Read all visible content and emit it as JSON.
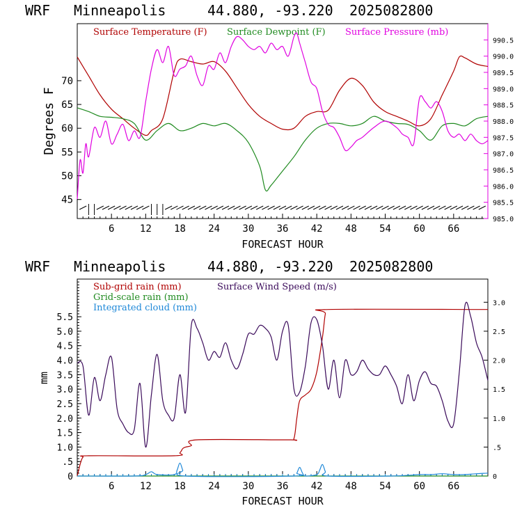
{
  "colors": {
    "temperature": "#b00000",
    "dewpoint": "#1f8a1f",
    "pressure": "#e000e0",
    "subgrid_rain": "#b00000",
    "gridscale_rain": "#1f8a1f",
    "cloud": "#1e88d8",
    "wind_speed": "#3a0a5a",
    "axis": "#000000"
  },
  "chart_data": [
    {
      "type": "line",
      "header": {
        "model": "WRF",
        "location": "Minneapolis",
        "coords": "44.880, -93.220",
        "run": "2025082800"
      },
      "xlabel": "FORECAST HOUR",
      "ylabel": "Degrees F",
      "xlim": [
        0,
        72
      ],
      "ylim": [
        41,
        82
      ],
      "y2lim": [
        985.0,
        991.0
      ],
      "x_ticks": [
        "6",
        "12",
        "18",
        "24",
        "30",
        "36",
        "42",
        "48",
        "54",
        "60",
        "66"
      ],
      "y_ticks": [
        "45",
        "50",
        "55",
        "60",
        "65",
        "70"
      ],
      "y2_ticks": [
        "985.0",
        "985.5",
        "986.0",
        "986.5",
        "987.0",
        "987.5",
        "988.0",
        "988.5",
        "989.0",
        "989.5",
        "990.0",
        "990.5"
      ],
      "legend": {
        "temperature": "Surface Temperature (F)",
        "dewpoint": "Surface Dewpoint (F)",
        "pressure": "Surface Pressure (mb)"
      },
      "series": [
        {
          "key": "temperature",
          "axis": "left",
          "x": [
            0,
            2,
            4,
            6,
            8,
            10,
            12,
            13,
            15,
            17,
            18,
            20,
            22,
            24,
            26,
            28,
            30,
            32,
            34,
            36,
            38,
            40,
            42,
            44,
            46,
            48,
            50,
            52,
            54,
            56,
            58,
            60,
            62,
            64,
            66,
            67,
            68,
            70,
            72
          ],
          "y": [
            75,
            71,
            67,
            64,
            62,
            60,
            58.5,
            59.5,
            62,
            72,
            74.5,
            74,
            73.5,
            74,
            72,
            68.5,
            65,
            62.5,
            61,
            59.8,
            60,
            62.5,
            63.5,
            63.8,
            68,
            70.5,
            69,
            65.5,
            63.5,
            62.5,
            61.5,
            60.5,
            62,
            67,
            72,
            75,
            74.8,
            73.5,
            73
          ]
        },
        {
          "key": "dewpoint",
          "axis": "left",
          "x": [
            0,
            2,
            4,
            6,
            8,
            10,
            12,
            14,
            16,
            18,
            20,
            22,
            24,
            26,
            28,
            30,
            32,
            33,
            34,
            36,
            38,
            40,
            42,
            44,
            46,
            48,
            50,
            52,
            54,
            56,
            58,
            60,
            62,
            64,
            66,
            68,
            70,
            72
          ],
          "y": [
            64.3,
            63.5,
            62.5,
            62.3,
            62,
            61,
            57.5,
            59.5,
            61,
            59.5,
            60,
            61,
            60.5,
            61,
            59.5,
            57,
            52,
            47,
            48,
            51,
            54,
            57.5,
            60,
            61,
            61,
            60.5,
            61,
            62.5,
            61.5,
            61,
            60.8,
            59.5,
            57.5,
            60.5,
            61,
            60.5,
            62,
            62.5
          ]
        },
        {
          "key": "pressure",
          "axis": "right",
          "x": [
            0,
            0.5,
            1,
            1.5,
            2,
            3,
            4,
            5,
            6,
            7,
            8,
            9,
            10,
            11,
            12,
            13,
            14,
            15,
            16,
            17,
            18,
            19,
            20,
            21,
            22,
            23,
            24,
            25,
            26,
            27,
            28,
            29,
            30,
            31,
            32,
            33,
            34,
            35,
            36,
            37,
            38,
            38.5,
            39,
            40,
            41,
            42,
            43,
            44,
            45,
            46,
            47,
            48,
            49,
            50,
            52,
            54,
            56,
            57,
            58,
            59,
            60,
            61,
            62,
            63,
            64,
            65,
            66,
            67,
            68,
            69,
            70,
            71,
            72
          ],
          "y": [
            985.6,
            986.8,
            986.4,
            987.3,
            986.9,
            987.8,
            987.5,
            988.0,
            987.3,
            987.6,
            987.9,
            987.4,
            987.7,
            987.5,
            988.6,
            989.6,
            990.2,
            989.8,
            990.3,
            989.4,
            989.6,
            989.7,
            990.0,
            989.4,
            989.1,
            989.7,
            989.6,
            990.1,
            989.8,
            990.3,
            990.6,
            990.5,
            990.3,
            990.2,
            990.3,
            990.1,
            990.4,
            990.2,
            990.3,
            990.0,
            990.6,
            990.7,
            990.4,
            989.8,
            989.2,
            989.0,
            988.3,
            987.9,
            987.8,
            987.5,
            987.1,
            987.2,
            987.4,
            987.5,
            987.8,
            988.0,
            987.8,
            987.6,
            987.5,
            987.3,
            988.7,
            988.6,
            988.4,
            988.6,
            988.3,
            987.7,
            987.5,
            987.6,
            987.4,
            987.6,
            987.4,
            987.3,
            987.4
          ]
        }
      ],
      "wind_barbs": "surface wind barbs along the bottom of the panel, hourly"
    },
    {
      "type": "line",
      "header": {
        "model": "WRF",
        "location": "Minneapolis",
        "coords": "44.880, -93.220",
        "run": "2025082800"
      },
      "xlabel": "FORECAST HOUR",
      "ylabel": "mm",
      "xlim": [
        0,
        72
      ],
      "ylim": [
        0,
        6.8
      ],
      "y2lim": [
        0,
        3.4
      ],
      "x_ticks": [
        "6",
        "12",
        "18",
        "24",
        "30",
        "36",
        "42",
        "48",
        "54",
        "60",
        "66"
      ],
      "y_ticks": [
        "0",
        ".5",
        "1.0",
        "1.5",
        "2.0",
        "2.5",
        "3.0",
        "3.5",
        "4.0",
        "4.5",
        "5.0",
        "5.5"
      ],
      "y2_ticks": [
        "0",
        ".5",
        "1.0",
        "1.5",
        "2.0",
        "2.5",
        "3.0"
      ],
      "legend": {
        "subgrid_rain": "Sub-grid rain (mm)",
        "wind_speed": "Surface Wind Speed (m/s)",
        "gridscale_rain": "Grid-scale rain (mm)",
        "cloud": "Integrated cloud (mm)"
      },
      "series": [
        {
          "key": "subgrid_rain",
          "axis": "left",
          "x": [
            0,
            0.5,
            1,
            2,
            17,
            18,
            18.5,
            19,
            20,
            21,
            37,
            38,
            38.5,
            39,
            40,
            41,
            42,
            43,
            43.5,
            44,
            72
          ],
          "y": [
            0,
            0.4,
            0.65,
            0.7,
            0.7,
            0.8,
            0.95,
            1.0,
            1.05,
            1.25,
            1.25,
            1.3,
            2.0,
            2.6,
            2.8,
            3.0,
            3.6,
            4.8,
            5.6,
            5.75,
            5.75
          ]
        },
        {
          "key": "gridscale_rain",
          "axis": "left",
          "x": [
            0,
            72
          ],
          "y": [
            0,
            0
          ]
        },
        {
          "key": "cloud",
          "axis": "left",
          "x": [
            0,
            10,
            12,
            13,
            14,
            17,
            17.5,
            18,
            18.5,
            19,
            38,
            38.5,
            39,
            39.5,
            40,
            42,
            42.5,
            43,
            43.5,
            44,
            55,
            60,
            62,
            64,
            66,
            68,
            70,
            72
          ],
          "y": [
            0,
            0,
            0.05,
            0.15,
            0.05,
            0.05,
            0.2,
            0.45,
            0.2,
            0.0,
            0,
            0.1,
            0.3,
            0.1,
            0,
            0.05,
            0.2,
            0.4,
            0.15,
            0,
            0,
            0.05,
            0.05,
            0.08,
            0.05,
            0.05,
            0.08,
            0.1
          ]
        },
        {
          "key": "wind_speed",
          "axis": "right",
          "x": [
            0,
            1,
            2,
            3,
            4,
            5,
            6,
            7,
            8,
            9,
            10,
            11,
            12,
            13,
            14,
            15,
            16,
            17,
            18,
            19,
            20,
            21,
            22,
            23,
            24,
            25,
            26,
            27,
            28,
            29,
            30,
            31,
            32,
            33,
            34,
            35,
            36,
            37,
            38,
            39,
            40,
            41,
            42,
            43,
            44,
            45,
            46,
            47,
            48,
            49,
            50,
            51,
            52,
            53,
            54,
            55,
            56,
            57,
            58,
            59,
            60,
            61,
            62,
            63,
            64,
            65,
            66,
            67,
            68,
            69,
            70,
            71,
            72
          ],
          "y": [
            1.95,
            1.9,
            1.05,
            1.7,
            1.3,
            1.75,
            2.05,
            1.15,
            0.9,
            0.75,
            0.8,
            1.6,
            0.5,
            1.4,
            2.1,
            1.3,
            1.05,
            1.0,
            1.75,
            1.1,
            2.6,
            2.55,
            2.3,
            2.0,
            2.15,
            2.05,
            2.3,
            2.0,
            1.85,
            2.1,
            2.45,
            2.45,
            2.6,
            2.55,
            2.4,
            2.0,
            2.5,
            2.6,
            1.5,
            1.45,
            1.9,
            2.65,
            2.7,
            2.25,
            1.5,
            2.0,
            1.35,
            2.0,
            1.75,
            1.8,
            2.0,
            1.85,
            1.75,
            1.75,
            1.9,
            1.75,
            1.55,
            1.25,
            1.75,
            1.3,
            1.65,
            1.8,
            1.6,
            1.55,
            1.3,
            0.95,
            0.9,
            1.8,
            2.95,
            2.75,
            2.3,
            2.05,
            1.65
          ]
        }
      ]
    }
  ]
}
